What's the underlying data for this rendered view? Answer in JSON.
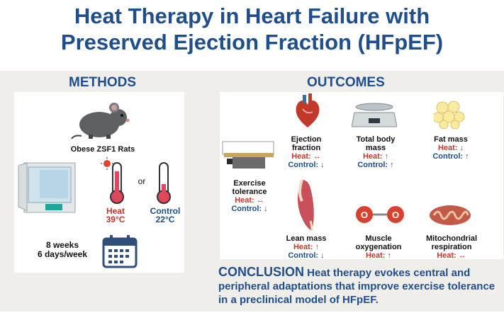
{
  "title": {
    "line1": "Heat Therapy in Heart Failure with",
    "line2": "Preserved Ejection Fraction (HFpEF)"
  },
  "methods": {
    "heading": "METHODS",
    "animal": "Obese ZSF1 Rats",
    "or": "or",
    "heat": {
      "label": "Heat",
      "temp": "39°C"
    },
    "control": {
      "label": "Control",
      "temp": "22°C"
    },
    "duration": {
      "line1": "8 weeks",
      "line2": "6 days/week"
    }
  },
  "outcomes": {
    "heading": "OUTCOMES",
    "items": [
      {
        "name_l1": "Ejection",
        "name_l2": "fraction",
        "heat": "Heat: ↔",
        "control": "Control: ↓"
      },
      {
        "name_l1": "Total body",
        "name_l2": "mass",
        "heat": "Heat: ↑",
        "control": "Control: ↑"
      },
      {
        "name_l1": "Fat mass",
        "name_l2": "",
        "heat": "Heat: ↓",
        "control": "Control: ↑"
      },
      {
        "name_l1": "Exercise",
        "name_l2": "tolerance",
        "heat": "Heat: ↔",
        "control": "Control: ↓"
      },
      {
        "name_l1": "Lean mass",
        "name_l2": "",
        "heat": "Heat: ↑",
        "control": "Control: ↓"
      },
      {
        "name_l1": "Muscle",
        "name_l2": "oxygenation",
        "heat": "Heat: ↑",
        "control": ""
      },
      {
        "name_l1": "Mitochondrial",
        "name_l2": "respiration",
        "heat": "Heat: ↔",
        "control": ""
      }
    ]
  },
  "conclusion": {
    "label": "CONCLUSION",
    "text": "Heat therapy evokes central and peripheral adaptations that improve exercise tolerance in a preclinical model of HFpEF."
  },
  "colors": {
    "title_blue": "#1f4e8c",
    "heat_red": "#c0392b",
    "band": "#f0eeea"
  }
}
